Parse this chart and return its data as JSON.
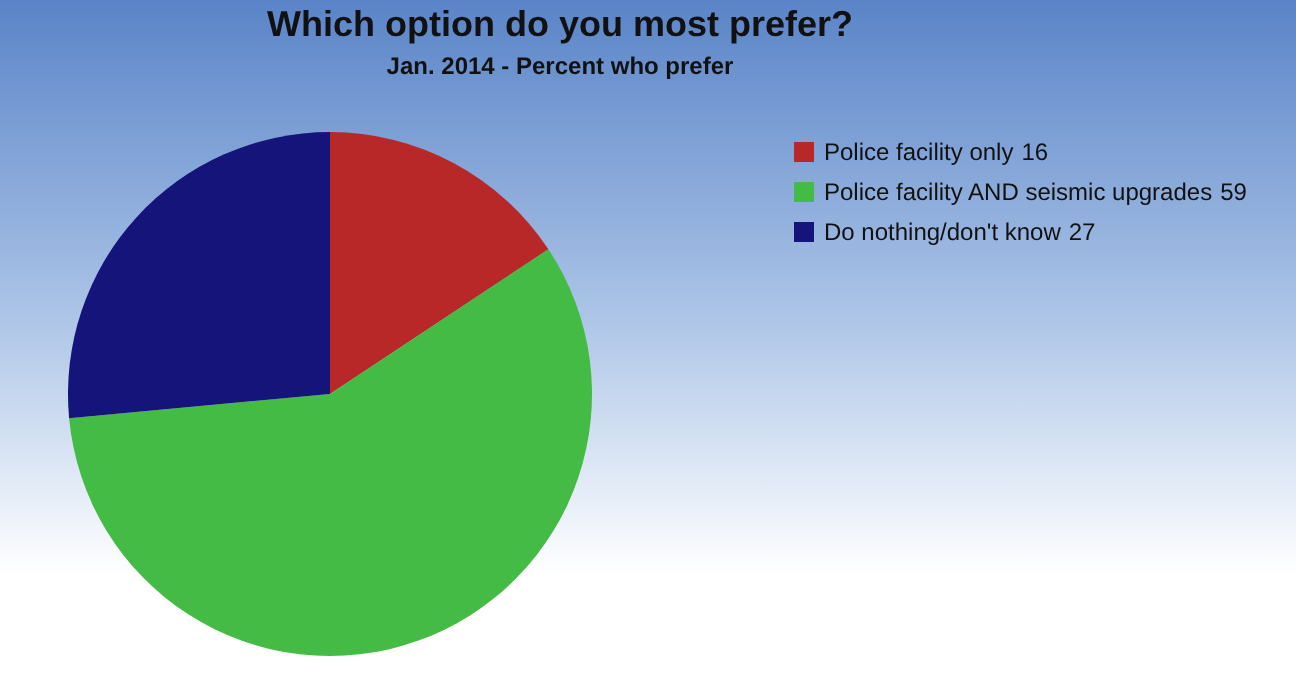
{
  "chart_data": {
    "type": "pie",
    "title": "Which option do you most prefer?",
    "subtitle": "Jan. 2014 - Percent who prefer",
    "categories": [
      "Police facility only",
      "Police facility AND seismic upgrades",
      "Do nothing/don't know"
    ],
    "values": [
      16,
      59,
      27
    ],
    "value_labels": [
      "16",
      "59",
      "27"
    ],
    "colors": [
      "#b82828",
      "#44bb44",
      "#14147a"
    ],
    "legend": "top right"
  }
}
